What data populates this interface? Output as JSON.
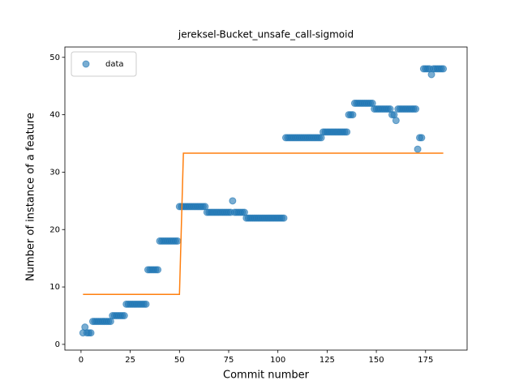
{
  "chart_data": {
    "type": "scatter",
    "title": "jereksel-Bucket_unsafe_call-sigmoid",
    "xlabel": "Commit number",
    "ylabel": "Number of instance of a feature",
    "xlim": [
      -8.2,
      196.1
    ],
    "ylim": [
      -1,
      51.8
    ],
    "xticks": [
      0,
      25,
      50,
      75,
      100,
      125,
      150,
      175
    ],
    "yticks": [
      0,
      10,
      20,
      30,
      40,
      50
    ],
    "legend": "upper left",
    "series": [
      {
        "name": "data",
        "type": "scatter",
        "color": "#1f77b4",
        "x": [
          1,
          2,
          3,
          4,
          5,
          6,
          7,
          8,
          9,
          10,
          11,
          12,
          13,
          14,
          15,
          16,
          17,
          18,
          19,
          20,
          21,
          22,
          23,
          24,
          25,
          26,
          27,
          28,
          29,
          30,
          31,
          32,
          33,
          34,
          35,
          36,
          37,
          38,
          39,
          40,
          41,
          42,
          43,
          44,
          45,
          46,
          47,
          48,
          49,
          50,
          51,
          52,
          53,
          54,
          55,
          56,
          57,
          58,
          59,
          60,
          61,
          62,
          63,
          64,
          65,
          66,
          67,
          68,
          69,
          70,
          71,
          72,
          73,
          74,
          75,
          76,
          77,
          78,
          79,
          80,
          81,
          82,
          83,
          84,
          85,
          86,
          87,
          88,
          89,
          90,
          91,
          92,
          93,
          94,
          95,
          96,
          97,
          98,
          99,
          100,
          101,
          102,
          103,
          104,
          105,
          106,
          107,
          108,
          109,
          110,
          111,
          112,
          113,
          114,
          115,
          116,
          117,
          118,
          119,
          120,
          121,
          122,
          123,
          124,
          125,
          126,
          127,
          128,
          129,
          130,
          131,
          132,
          133,
          134,
          135,
          136,
          137,
          138,
          139,
          140,
          141,
          142,
          143,
          144,
          145,
          146,
          147,
          148,
          149,
          150,
          151,
          152,
          153,
          154,
          155,
          156,
          157,
          158,
          159,
          160,
          161,
          162,
          163,
          164,
          165,
          166,
          167,
          168,
          169,
          170,
          171,
          172,
          173,
          174,
          175,
          176,
          177,
          178,
          179,
          180,
          181,
          182,
          183,
          184
        ],
        "values": [
          2,
          3,
          2,
          2,
          2,
          4,
          4,
          4,
          4,
          4,
          4,
          4,
          4,
          4,
          4,
          5,
          5,
          5,
          5,
          5,
          5,
          5,
          7,
          7,
          7,
          7,
          7,
          7,
          7,
          7,
          7,
          7,
          7,
          13,
          13,
          13,
          13,
          13,
          13,
          18,
          18,
          18,
          18,
          18,
          18,
          18,
          18,
          18,
          18,
          24,
          24,
          24,
          24,
          24,
          24,
          24,
          24,
          24,
          24,
          24,
          24,
          24,
          24,
          23,
          23,
          23,
          23,
          23,
          23,
          23,
          23,
          23,
          23,
          23,
          23,
          23,
          25,
          23,
          23,
          23,
          23,
          23,
          23,
          22,
          22,
          22,
          22,
          22,
          22,
          22,
          22,
          22,
          22,
          22,
          22,
          22,
          22,
          22,
          22,
          22,
          22,
          22,
          22,
          36,
          36,
          36,
          36,
          36,
          36,
          36,
          36,
          36,
          36,
          36,
          36,
          36,
          36,
          36,
          36,
          36,
          36,
          36,
          37,
          37,
          37,
          37,
          37,
          37,
          37,
          37,
          37,
          37,
          37,
          37,
          37,
          40,
          40,
          40,
          42,
          42,
          42,
          42,
          42,
          42,
          42,
          42,
          42,
          42,
          41,
          41,
          41,
          41,
          41,
          41,
          41,
          41,
          41,
          40,
          40,
          39,
          41,
          41,
          41,
          41,
          41,
          41,
          41,
          41,
          41,
          41,
          34,
          36,
          36,
          48,
          48,
          48,
          48,
          47,
          48,
          48,
          48,
          48,
          48,
          48
        ]
      },
      {
        "type": "line",
        "color": "#ff7f0e",
        "x": [
          1,
          50,
          51,
          52,
          184
        ],
        "values": [
          8.7,
          8.7,
          21,
          33.3,
          33.3
        ]
      }
    ]
  }
}
